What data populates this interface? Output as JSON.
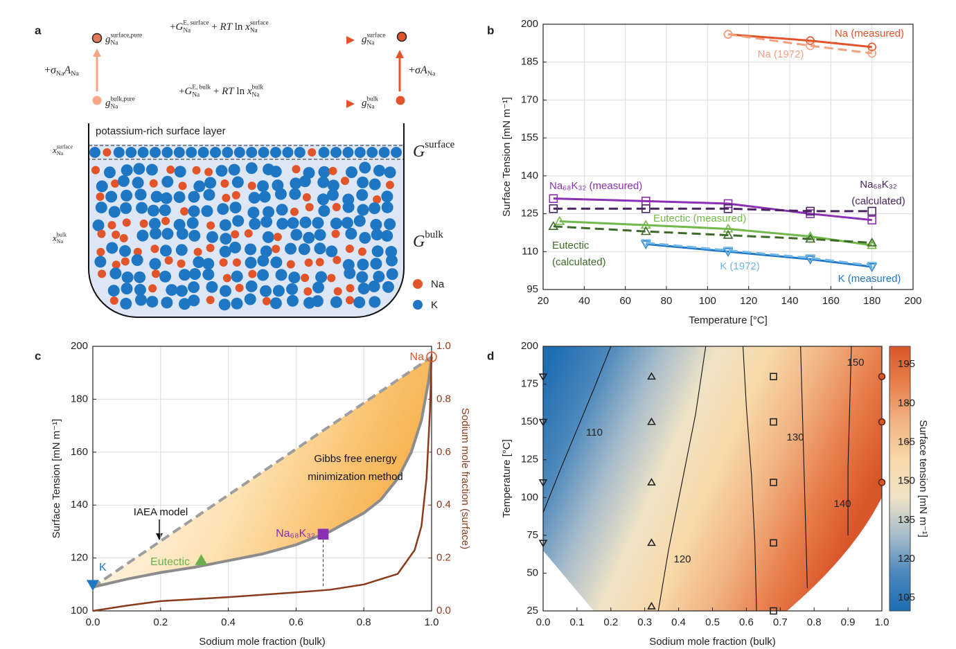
{
  "panel_labels": [
    "a",
    "b",
    "c",
    "d"
  ],
  "diagram": {
    "top_left": [
      {
        "t": "g",
        "i": true,
        "sub": "Na",
        "sup": "surface,pure"
      }
    ],
    "top_right": [
      {
        "t": "g",
        "i": true,
        "sub": "Na",
        "sup": "surface"
      }
    ],
    "bottom_left": [
      {
        "t": "g",
        "i": true,
        "sub": "Na",
        "sup": "bulk,pure"
      }
    ],
    "bottom_right": [
      {
        "t": "g",
        "i": true,
        "sub": "Na",
        "sup": "bulk"
      }
    ],
    "top_arrow": [
      {
        "t": "+"
      },
      {
        "t": "G",
        "i": true,
        "sub": "Na",
        "sup": "E, surface"
      },
      {
        "t": " + "
      },
      {
        "t": "RT",
        "i": true
      },
      {
        "t": " ln "
      },
      {
        "t": "x",
        "i": true,
        "sub": "Na",
        "sup": "surface"
      }
    ],
    "bottom_arrow": [
      {
        "t": "+"
      },
      {
        "t": "G",
        "i": true,
        "sub": "Na",
        "sup": "E, bulk"
      },
      {
        "t": " + "
      },
      {
        "t": "RT",
        "i": true
      },
      {
        "t": " ln "
      },
      {
        "t": "x",
        "i": true,
        "sub": "Na",
        "sup": "bulk"
      }
    ],
    "left_arrow": [
      {
        "t": "+"
      },
      {
        "t": "σ",
        "i": true,
        "sub": "Na"
      },
      {
        "t": "A",
        "i": true,
        "sub": "Na"
      }
    ],
    "right_arrow": [
      {
        "t": "+"
      },
      {
        "t": "σA",
        "i": true,
        "sub": "Na"
      }
    ],
    "surface_layer": "potassium-rich surface layer",
    "x_surface": [
      {
        "t": "x",
        "i": true,
        "sub": "Na",
        "sup": "surface"
      }
    ],
    "x_bulk": [
      {
        "t": "x",
        "i": true,
        "sub": "Na",
        "sup": "bulk"
      }
    ],
    "G_surface": [
      {
        "t": "G",
        "i": true,
        "sup": "surface"
      }
    ],
    "G_bulk": [
      {
        "t": "G",
        "i": true,
        "sup": "bulk"
      }
    ],
    "legend": [
      {
        "name": "Na",
        "color": "#e2552b"
      },
      {
        "name": "K",
        "color": "#1f77c4"
      }
    ]
  },
  "chart_data": [
    {
      "type": "line",
      "xlabel": "Temperature [°C]",
      "ylabel": "Surface Tension [mN m⁻¹]",
      "xlim": [
        20,
        200
      ],
      "xticks": [
        20,
        40,
        60,
        80,
        100,
        120,
        140,
        160,
        180,
        200
      ],
      "ylim": [
        95,
        200
      ],
      "yticks": [
        95,
        110,
        125,
        140,
        155,
        170,
        185,
        200
      ],
      "grid": true,
      "series": [
        {
          "name": "Na (measured)",
          "color": "#e2552b",
          "marker": "circle",
          "x": [
            110,
            150,
            180
          ],
          "values": [
            196,
            193.5,
            191
          ]
        },
        {
          "name": "Na (1972)",
          "color": "#f4a07f",
          "marker": "circle",
          "dash": true,
          "x": [
            110,
            150,
            180
          ],
          "values": [
            196,
            191.5,
            188.5
          ]
        },
        {
          "name": "Na₆₈K₃₂ (measured)",
          "color": "#8b2fb5",
          "marker": "square",
          "x": [
            25,
            70,
            110,
            150,
            180
          ],
          "values": [
            131,
            130,
            129,
            125,
            122.5
          ]
        },
        {
          "name": [
            "Na₆₈K₃₂",
            "(calculated)"
          ],
          "color": "#4a2360",
          "marker": "square",
          "dash": true,
          "x": [
            25,
            70,
            110,
            150,
            180
          ],
          "values": [
            127,
            127,
            127,
            126,
            126
          ]
        },
        {
          "name": "Eutectic (measured)",
          "color": "#72b84a",
          "marker": "triangle-up",
          "x": [
            28,
            70,
            110,
            150,
            180
          ],
          "values": [
            122,
            120.5,
            119,
            116,
            112.5
          ]
        },
        {
          "name": [
            "Eutectic",
            "(calculated)"
          ],
          "color": "#3f6b2a",
          "marker": "triangle-up",
          "dash": true,
          "x": [
            25,
            70,
            110,
            150,
            180
          ],
          "values": [
            120,
            118,
            116.5,
            115,
            113.5
          ]
        },
        {
          "name": "K (measured)",
          "color": "#1f77c4",
          "marker": "triangle-down",
          "x": [
            70,
            110,
            150,
            180
          ],
          "values": [
            113,
            110,
            107,
            104
          ]
        },
        {
          "name": "K (1972)",
          "color": "#6fb7e8",
          "marker": "triangle-down",
          "dash": true,
          "x": [
            70,
            110,
            150,
            180
          ],
          "values": [
            113.5,
            110.5,
            107.5,
            104.5
          ]
        }
      ]
    },
    {
      "type": "line",
      "xlabel": "Sodium mole fraction (bulk)",
      "ylabel": "Surface Tension [mN m⁻¹]",
      "y2label": "Sodium mole fraction (surface)",
      "xlim": [
        0,
        1
      ],
      "xticks": [
        {
          "value": 0,
          "label": "0.0"
        },
        0.2,
        0.4,
        0.6,
        0.8,
        {
          "value": 1,
          "label": "1.0"
        }
      ],
      "ylim": [
        100,
        200
      ],
      "yticks": [
        100,
        120,
        140,
        160,
        180,
        200
      ],
      "y2lim": [
        0,
        1
      ],
      "y2ticks": [
        {
          "value": 0,
          "label": "0.0"
        },
        0.2,
        0.4,
        0.6,
        0.8,
        {
          "value": 1,
          "label": "1.0"
        }
      ],
      "y2color": "#8b3a1a",
      "grid": true,
      "series": [
        {
          "name": "IAEA model",
          "color": "#9e9e9e",
          "dash": true,
          "x": [
            0,
            1
          ],
          "values": [
            109,
            196
          ]
        },
        {
          "name": [
            "Gibbs free energy",
            "minimization method"
          ],
          "color": "#8c8c8c",
          "x": [
            0,
            0.1,
            0.2,
            0.3,
            0.4,
            0.5,
            0.6,
            0.7,
            0.8,
            0.85,
            0.9,
            0.94,
            0.97,
            0.99,
            1
          ],
          "values": [
            109,
            112,
            114.5,
            116.5,
            119,
            121.5,
            125,
            130,
            137,
            142,
            150,
            160,
            172,
            186,
            196
          ]
        },
        {
          "color": "#8b3a1a",
          "axis": "y2",
          "x": [
            0,
            0.1,
            0.2,
            0.4,
            0.6,
            0.7,
            0.8,
            0.9,
            0.95,
            0.97,
            0.985,
            0.995,
            1
          ],
          "values": [
            0,
            0.02,
            0.037,
            0.052,
            0.07,
            0.08,
            0.1,
            0.14,
            0.23,
            0.32,
            0.5,
            0.75,
            0.97
          ]
        }
      ],
      "points": [
        {
          "name": "K",
          "color": "#1f77c4",
          "marker": "triangle-down",
          "filled": true,
          "x": 0,
          "y": 110
        },
        {
          "name": "Eutectic",
          "color": "#6ab04c",
          "marker": "triangle-up",
          "filled": true,
          "x": 0.32,
          "y": 119
        },
        {
          "name": "Na₆₈K₃₂",
          "color": "#8b2fb5",
          "marker": "square",
          "filled": true,
          "x": 0.68,
          "y": 129
        },
        {
          "name": "Na",
          "color": "#e2552b",
          "marker": "circle",
          "filled": false,
          "x": 1,
          "y": 196
        }
      ]
    },
    {
      "type": "contour",
      "xlabel": "Sodium mole fraction (bulk)",
      "ylabel": "Temperature [°C]",
      "colorbar_label": "Surface tension [mN m⁻¹]",
      "xlim": [
        0,
        1
      ],
      "xticks": [
        {
          "value": 0,
          "label": "0.0"
        },
        0.1,
        0.2,
        0.3,
        0.4,
        0.5,
        0.6,
        0.7,
        0.8,
        0.9,
        {
          "value": 1,
          "label": "1.0"
        }
      ],
      "ylim": [
        25,
        200
      ],
      "yticks": [
        25,
        50,
        75,
        100,
        125,
        150,
        175,
        200
      ],
      "clim": [
        100,
        202
      ],
      "cticks": [
        105,
        120,
        135,
        150,
        165,
        180,
        195
      ],
      "colorscale": [
        "#1d6db3",
        "#4a87bb",
        "#a7bccb",
        "#efe3c6",
        "#f8d9a9",
        "#f1b483",
        "#e8804e",
        "#d9562a"
      ],
      "contours": [
        {
          "level": 110,
          "x": [
            0,
            0.05,
            0.1,
            0.15,
            0.2
          ],
          "y": [
            90,
            118,
            145,
            172,
            200
          ]
        },
        {
          "level": 120,
          "x": [
            0.34,
            0.37,
            0.41,
            0.45,
            0.48
          ],
          "y": [
            25,
            65,
            110,
            155,
            200
          ]
        },
        {
          "level": 130,
          "x": [
            0.63,
            0.625,
            0.615,
            0.6,
            0.59
          ],
          "y": [
            25,
            70,
            115,
            160,
            200
          ]
        },
        {
          "level": 140,
          "x": [
            0.78,
            0.775,
            0.77,
            0.765,
            0.76
          ],
          "y": [
            40,
            80,
            120,
            160,
            200
          ]
        },
        {
          "level": 150,
          "x": [
            0.9,
            0.9,
            0.905,
            0.91
          ],
          "y": [
            75,
            120,
            160,
            200
          ]
        }
      ],
      "markers": [
        {
          "marker": "triangle-down",
          "color": "#222222",
          "x": [
            0,
            0,
            0,
            0
          ],
          "y": [
            70,
            110,
            150,
            180
          ]
        },
        {
          "marker": "triangle-up",
          "color": "#222222",
          "x": [
            0.32,
            0.32,
            0.32,
            0.32,
            0.32
          ],
          "y": [
            28,
            70,
            110,
            150,
            180
          ]
        },
        {
          "marker": "square",
          "color": "#222222",
          "x": [
            0.68,
            0.68,
            0.68,
            0.68,
            0.68
          ],
          "y": [
            25,
            70,
            110,
            150,
            180
          ]
        },
        {
          "marker": "circle",
          "color": "#d9562a",
          "filled": true,
          "x": [
            1,
            1,
            1
          ],
          "y": [
            110,
            150,
            180
          ]
        }
      ]
    }
  ]
}
